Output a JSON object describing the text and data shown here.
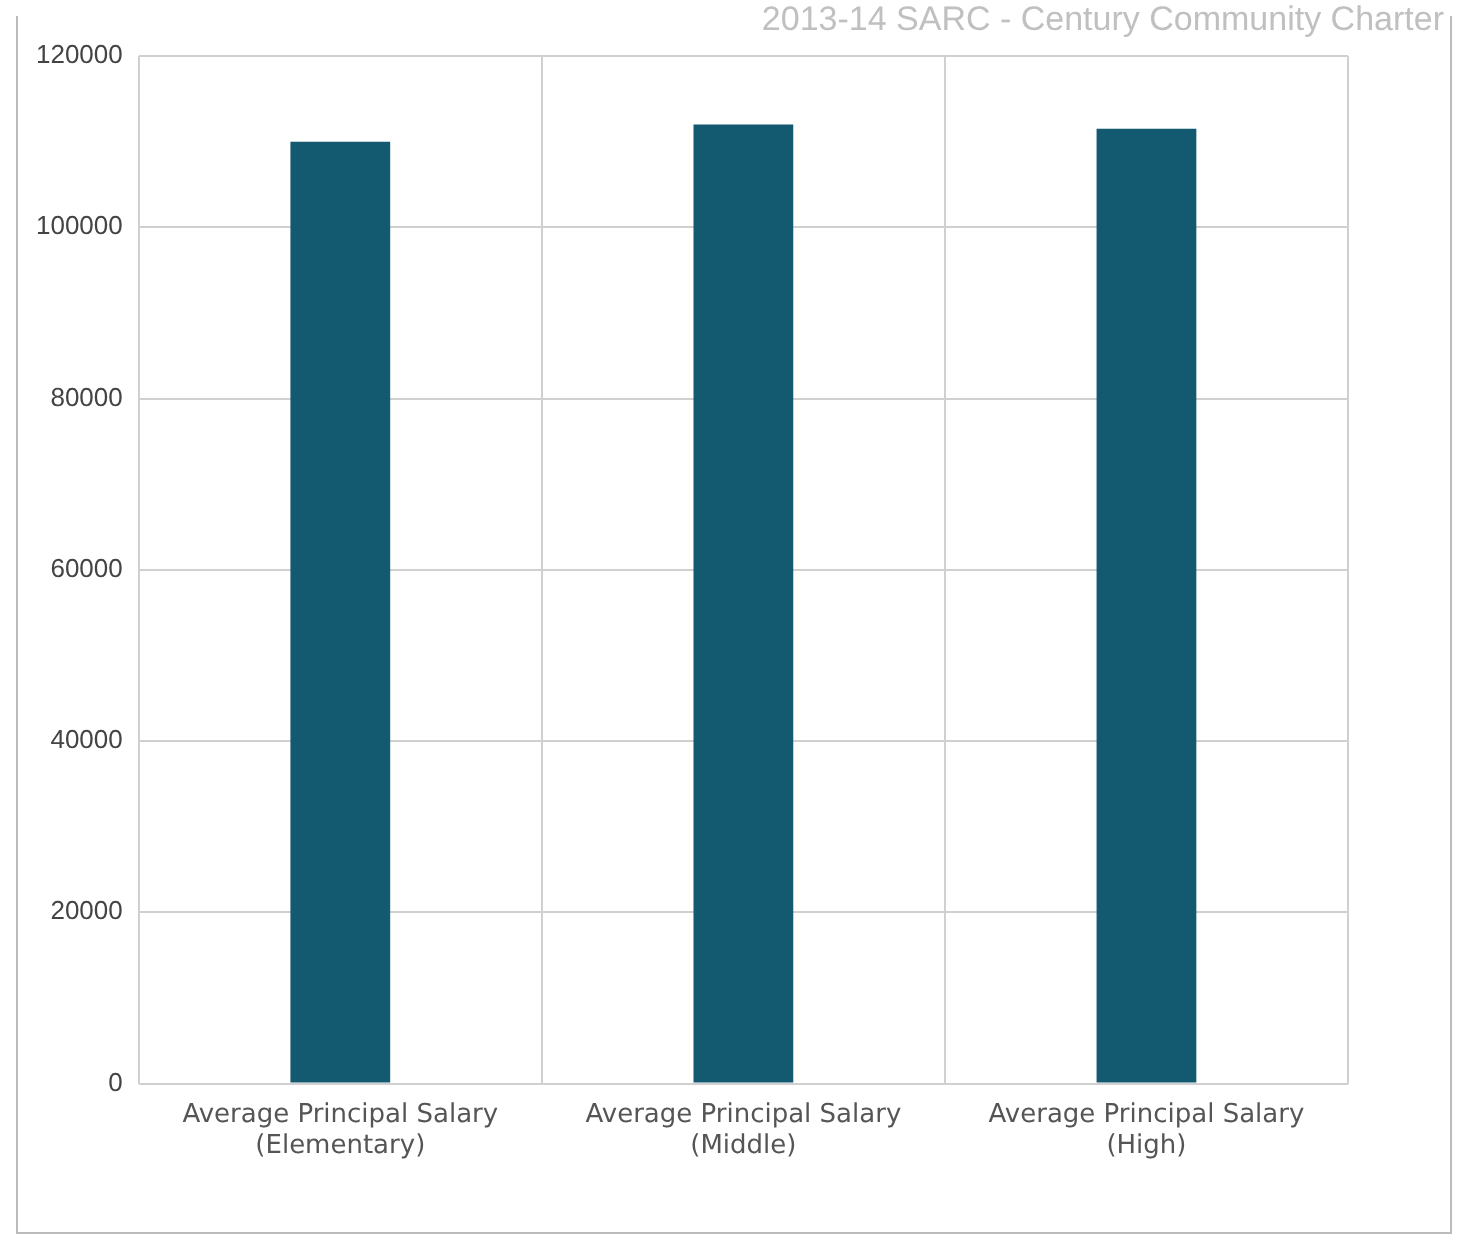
{
  "chart_data": {
    "type": "bar",
    "title": "2013-14 SARC - Century Community Charter",
    "categories": [
      "Average Principal Salary\n(Elementary)",
      "Average Principal Salary\n(Middle)",
      "Average Principal Salary\n(High)"
    ],
    "values": [
      110000,
      112000,
      111500
    ],
    "color": "#135970",
    "ylim": [
      0,
      120000
    ],
    "yticks": [
      0,
      20000,
      40000,
      60000,
      80000,
      100000,
      120000
    ],
    "grid": true,
    "legend": false
  }
}
